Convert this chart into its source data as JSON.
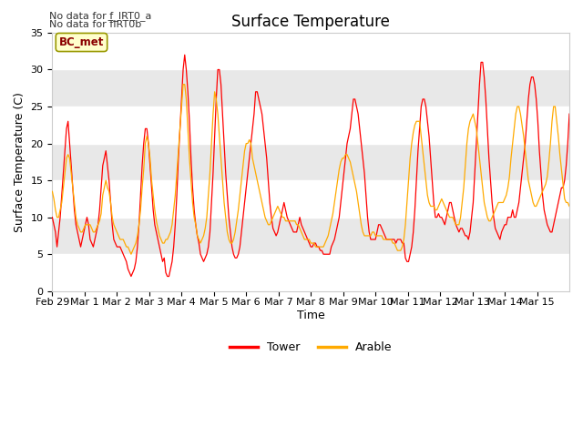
{
  "title": "Surface Temperature",
  "xlabel": "Time",
  "ylabel": "Surface Temperature (C)",
  "ylim": [
    0,
    35
  ],
  "xlim": [
    0,
    384
  ],
  "background_color": "#ffffff",
  "plot_bg_color": "#e8e8e8",
  "stripe_color": "#f0f0f0",
  "tower_color": "#ff0000",
  "arable_color": "#ffaa00",
  "bc_met_label": "BC_met",
  "bc_met_bg": "#ffffcc",
  "bc_met_border": "#999900",
  "no_data_text_1": "No data for f_IRT0_a",
  "no_data_text_2": "No data for f̅IRT0̅b",
  "xtick_labels": [
    "Feb 29",
    "Mar 1",
    "Mar 2",
    "Mar 3",
    "Mar 4",
    "Mar 5",
    "Mar 6",
    "Mar 7",
    "Mar 8",
    "Mar 9",
    "Mar 10",
    "Mar 11",
    "Mar 12",
    "Mar 13",
    "Mar 14",
    "Mar 15"
  ],
  "xtick_positions": [
    0,
    24,
    48,
    72,
    96,
    120,
    144,
    168,
    192,
    216,
    240,
    264,
    288,
    312,
    336,
    360
  ],
  "stripe_ranges": [
    [
      0,
      5
    ],
    [
      10,
      15
    ],
    [
      20,
      25
    ],
    [
      30,
      35
    ]
  ],
  "tower_y": [
    10,
    9,
    8,
    6,
    8,
    10,
    13,
    16,
    19,
    22,
    23,
    20,
    17,
    14,
    11,
    9,
    8,
    7,
    6,
    7,
    8,
    9,
    10,
    9,
    7,
    6.5,
    6,
    7,
    8,
    9,
    11,
    14,
    17,
    18,
    19,
    17,
    15,
    12,
    9,
    7,
    6.5,
    6,
    6,
    6,
    5.5,
    5,
    4.5,
    4,
    3,
    2.5,
    2,
    2.5,
    3,
    4,
    6,
    9,
    13,
    17,
    20,
    22,
    22,
    20,
    17,
    14,
    11,
    9,
    8,
    7,
    6,
    5,
    4,
    4.5,
    2.5,
    2,
    2,
    3,
    4,
    6,
    9,
    13,
    18,
    22,
    26,
    30,
    32,
    30,
    27,
    23,
    18,
    14,
    11,
    9,
    7.5,
    6.5,
    5,
    4.5,
    4,
    4.5,
    5,
    6,
    8,
    12,
    16,
    21,
    26,
    30,
    30,
    28,
    24,
    20,
    16,
    13,
    10,
    8,
    6,
    5,
    4.5,
    4.5,
    5,
    6,
    8,
    10,
    12,
    14,
    16,
    18,
    20,
    22,
    24,
    27,
    27,
    26,
    25,
    24,
    22,
    20,
    18,
    15,
    12,
    10,
    8.5,
    8,
    7.5,
    8,
    9,
    10,
    11,
    12,
    11,
    10,
    9.5,
    9,
    8.5,
    8,
    8,
    8,
    9,
    10,
    9,
    8.5,
    8,
    7.5,
    7,
    6.5,
    6,
    6,
    6.5,
    6.5,
    6,
    6,
    5.5,
    5.5,
    5,
    5,
    5,
    5,
    5,
    6,
    6.5,
    7,
    8,
    9,
    10,
    12,
    14,
    16,
    18,
    20,
    21,
    22,
    24,
    26,
    26,
    25,
    24,
    22,
    20,
    18,
    16,
    13,
    10,
    8,
    7,
    7,
    7,
    7,
    8,
    9,
    9,
    8.5,
    8,
    7.5,
    7,
    7,
    7,
    7,
    7,
    7,
    6.5,
    7,
    7,
    7,
    6.5,
    6.5,
    4.5,
    4,
    4,
    5,
    6,
    8,
    11,
    15,
    19,
    22,
    25,
    26,
    26,
    25,
    23,
    21,
    18,
    15,
    12,
    10,
    10,
    10.5,
    10,
    10,
    9.5,
    9,
    10,
    11,
    12,
    12,
    11,
    10,
    9,
    8.5,
    8,
    8.5,
    8.5,
    8,
    7.5,
    7.5,
    7,
    8,
    10,
    12,
    16,
    20,
    24,
    28,
    31,
    31,
    29,
    26,
    22,
    18,
    15,
    12,
    10,
    8.5,
    8,
    7.5,
    7,
    8,
    8.5,
    9,
    9,
    10,
    10,
    10,
    11,
    10,
    10,
    11,
    12,
    14,
    16,
    18,
    20,
    23,
    26,
    28,
    29,
    29,
    28,
    26,
    23,
    19,
    16,
    13,
    11,
    10,
    9,
    8.5,
    8,
    8,
    9,
    10,
    11,
    12,
    13,
    14,
    14,
    15,
    17,
    20,
    24,
    27,
    30,
    30,
    28,
    25,
    22,
    18,
    15,
    12,
    11,
    10,
    9.5,
    9
  ],
  "arable_y": [
    13.5,
    12.5,
    11,
    10,
    10,
    11,
    12,
    14,
    16,
    18,
    18.5,
    18,
    16,
    14,
    12,
    10,
    9,
    8.5,
    8,
    8,
    8.5,
    9,
    9,
    9,
    9,
    8.5,
    8,
    8,
    8.5,
    9,
    9.5,
    10.5,
    13,
    14,
    15,
    14,
    13.5,
    12,
    10,
    9,
    8.5,
    8,
    7.5,
    7,
    7,
    7,
    6.5,
    6,
    6,
    5.5,
    5,
    5.5,
    6,
    6.5,
    7.5,
    9,
    11,
    14,
    16.5,
    20,
    21,
    20,
    18,
    15,
    13,
    11,
    9.5,
    8.5,
    7.5,
    7,
    6.5,
    6.5,
    7,
    7,
    7.5,
    8,
    9,
    11,
    13,
    16,
    19,
    22,
    25,
    28,
    28,
    26,
    22,
    18,
    15,
    12,
    10,
    9,
    7.5,
    7,
    6.5,
    7,
    7.5,
    8.5,
    10,
    13,
    16,
    20,
    24,
    27,
    26,
    24,
    21,
    18,
    15,
    12,
    10,
    8,
    7,
    6.5,
    6.5,
    7,
    8,
    9.5,
    11,
    13,
    15,
    17,
    19,
    20,
    20,
    20.5,
    20,
    18,
    17,
    16,
    15,
    14,
    13,
    12,
    11,
    10,
    9.5,
    9,
    9,
    9.5,
    10,
    10.5,
    11,
    11.5,
    11,
    10.5,
    10,
    10,
    9.5,
    9.5,
    9.5,
    9.5,
    9.5,
    9.5,
    9.5,
    9,
    9,
    8.5,
    8,
    7.5,
    7,
    7,
    7,
    7,
    6.5,
    6.5,
    6.5,
    6,
    6,
    6,
    6,
    6,
    6,
    6.5,
    7,
    7.5,
    8.5,
    9.5,
    10.5,
    12,
    13.5,
    15,
    16.5,
    17.5,
    18,
    18,
    18.5,
    18.5,
    18,
    17.5,
    16.5,
    15.5,
    14.5,
    13.5,
    12,
    10.5,
    9,
    8,
    7.5,
    7.5,
    7.5,
    7.5,
    7.5,
    8,
    8,
    7.5,
    7.5,
    7.5,
    7.5,
    7.5,
    7,
    7,
    7,
    7,
    7,
    7,
    6.5,
    6.5,
    6,
    5.5,
    5.5,
    5.5,
    6,
    7,
    9,
    12,
    15,
    18,
    20,
    21.5,
    22.5,
    23,
    23,
    23,
    21,
    19,
    17,
    15,
    13,
    12,
    11.5,
    11.5,
    11.5,
    11,
    11,
    11.5,
    12,
    12.5,
    12,
    11.5,
    11,
    10.5,
    10,
    10,
    10,
    9.5,
    9,
    9,
    9,
    10,
    12,
    14,
    17,
    20,
    22,
    23,
    23.5,
    24,
    23,
    22,
    20,
    18,
    16,
    14,
    12,
    11,
    10,
    9.5,
    9.5,
    10,
    10.5,
    11,
    11.5,
    12,
    12,
    12,
    12,
    12.5,
    13,
    14,
    15.5,
    18,
    20,
    22,
    24,
    25,
    25,
    24,
    22.5,
    21,
    19,
    17,
    15,
    14,
    13,
    12,
    11.5,
    11.5,
    12,
    12.5,
    13,
    13.5,
    14,
    14.5,
    15.5,
    17.5,
    20,
    23,
    25,
    25,
    23,
    21,
    18.5,
    16.5,
    14.5,
    12.5,
    12,
    12,
    11.5
  ]
}
